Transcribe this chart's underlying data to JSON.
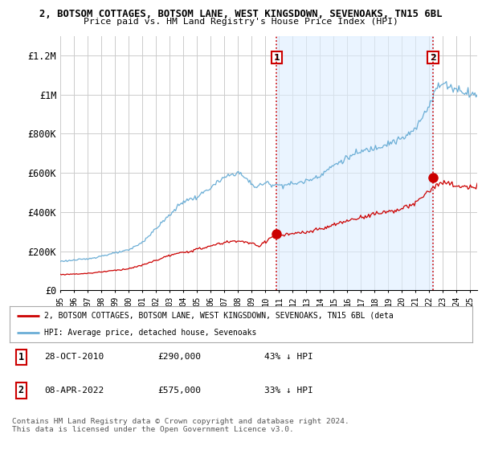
{
  "title_line1": "2, BOTSOM COTTAGES, BOTSOM LANE, WEST KINGSDOWN, SEVENOAKS, TN15 6BL",
  "title_line2": "Price paid vs. HM Land Registry's House Price Index (HPI)",
  "background_color": "#ffffff",
  "plot_bg_color": "#ffffff",
  "grid_color": "#cccccc",
  "hpi_color": "#6baed6",
  "fill_color": "#ddeeff",
  "price_color": "#cc0000",
  "dashed_vline_color": "#cc0000",
  "ylim": [
    0,
    1300000
  ],
  "yticks": [
    0,
    200000,
    400000,
    600000,
    800000,
    1000000,
    1200000
  ],
  "ytick_labels": [
    "£0",
    "£200K",
    "£400K",
    "£600K",
    "£800K",
    "£1M",
    "£1.2M"
  ],
  "sale1_x": 2010.83,
  "sale1_y": 290000,
  "sale1_label": "1",
  "sale2_x": 2022.27,
  "sale2_y": 575000,
  "sale2_label": "2",
  "legend_line1": "2, BOTSOM COTTAGES, BOTSOM LANE, WEST KINGSDOWN, SEVENOAKS, TN15 6BL (deta",
  "legend_line2": "HPI: Average price, detached house, Sevenoaks",
  "table_row1_num": "1",
  "table_row1_date": "28-OCT-2010",
  "table_row1_price": "£290,000",
  "table_row1_hpi": "43% ↓ HPI",
  "table_row2_num": "2",
  "table_row2_date": "08-APR-2022",
  "table_row2_price": "£575,000",
  "table_row2_hpi": "33% ↓ HPI",
  "footer": "Contains HM Land Registry data © Crown copyright and database right 2024.\nThis data is licensed under the Open Government Licence v3.0.",
  "xmin": 1995,
  "xmax": 2025.5
}
